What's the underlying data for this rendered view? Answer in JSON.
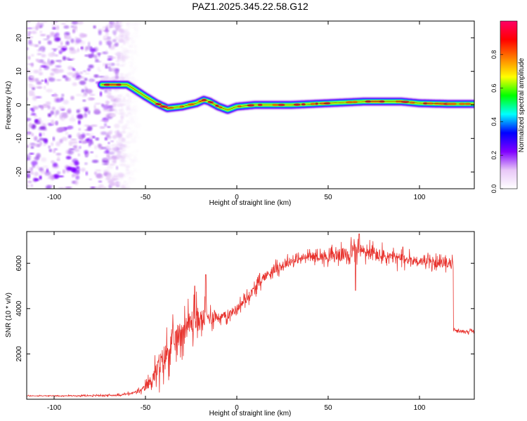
{
  "title": "PAZ1.2025.345.22.58.G12",
  "colors": {
    "snr_line": "#e8332e",
    "trace_center": "#e8332e",
    "axis": "#000000",
    "background": "#ffffff"
  },
  "chart_data": [
    {
      "type": "heatmap",
      "xlabel": "Height of straight line (km)",
      "ylabel": "Frequency (Hz)",
      "xlim": [
        -115,
        130
      ],
      "ylim": [
        -25,
        25
      ],
      "xticks": [
        "-100",
        "-50",
        "0",
        "50",
        "100"
      ],
      "yticks": [
        "-20",
        "-10",
        "0",
        "10",
        "20"
      ],
      "noise_region": [
        -115,
        -55
      ],
      "ridge": {
        "x": [
          -74,
          -60,
          -57,
          -50,
          -44,
          -38,
          -30,
          -22,
          -18,
          -15,
          -10,
          -5,
          0,
          10,
          30,
          50,
          70,
          90,
          100,
          115,
          130
        ],
        "freq": [
          6,
          6,
          5,
          2.5,
          0.5,
          -1,
          -0.5,
          0.5,
          1.5,
          1,
          -0.5,
          -1.5,
          -0.5,
          0,
          0,
          0.5,
          1,
          1,
          0.5,
          0.3,
          0.3
        ]
      },
      "colorbar": {
        "label": "Normalized spectral amplitude",
        "range": [
          0,
          1
        ],
        "ticks": [
          "0.0",
          "0.2",
          "0.4",
          "0.6",
          "0.8"
        ],
        "stops": [
          "#ffffff",
          "#e8c7f7",
          "#8000ff",
          "#0000ff",
          "#00ffff",
          "#00ff00",
          "#ffff00",
          "#ff8000",
          "#ff0000",
          "#ff0066"
        ]
      }
    },
    {
      "type": "line",
      "xlabel": "Height of straight line (km)",
      "ylabel": "SNR (10 * v/v)",
      "xlim": [
        -115,
        130
      ],
      "ylim": [
        0,
        7400
      ],
      "xticks": [
        "-100",
        "-50",
        "0",
        "50",
        "100"
      ],
      "yticks": [
        "2000",
        "4000",
        "6000"
      ],
      "series": [
        {
          "name": "SNR",
          "x": [
            -115,
            -100,
            -80,
            -65,
            -58,
            -52,
            -48,
            -45,
            -42,
            -40,
            -38,
            -35,
            -32,
            -30,
            -28,
            -25,
            -22,
            -20,
            -18,
            -15,
            -12,
            -10,
            -5,
            0,
            5,
            10,
            15,
            20,
            25,
            30,
            40,
            50,
            60,
            65,
            70,
            80,
            90,
            100,
            110,
            118,
            118.5,
            120,
            130
          ],
          "y": [
            150,
            150,
            160,
            180,
            250,
            400,
            700,
            1100,
            1500,
            1800,
            2100,
            2500,
            2800,
            3000,
            3200,
            3400,
            3500,
            3500,
            3600,
            3600,
            3700,
            3600,
            3700,
            4000,
            4400,
            4900,
            5400,
            5700,
            5900,
            6100,
            6300,
            6300,
            6400,
            6600,
            6500,
            6300,
            6200,
            6100,
            6000,
            6000,
            3100,
            3000,
            3000
          ],
          "noise_amplitude": [
            30,
            30,
            40,
            60,
            80,
            150,
            350,
            600,
            900,
            900,
            1000,
            900,
            900,
            900,
            800,
            900,
            1000,
            700,
            700,
            500,
            500,
            300,
            300,
            300,
            300,
            300,
            300,
            300,
            300,
            300,
            250,
            350,
            500,
            500,
            500,
            500,
            400,
            300,
            300,
            300,
            150,
            100,
            100
          ],
          "peaks": [
            {
              "x": -17,
              "y": 5500
            },
            {
              "x": -23,
              "y": 5000
            },
            {
              "x": 67,
              "y": 7300
            },
            {
              "x": 65,
              "y": 4800
            }
          ]
        }
      ]
    }
  ]
}
